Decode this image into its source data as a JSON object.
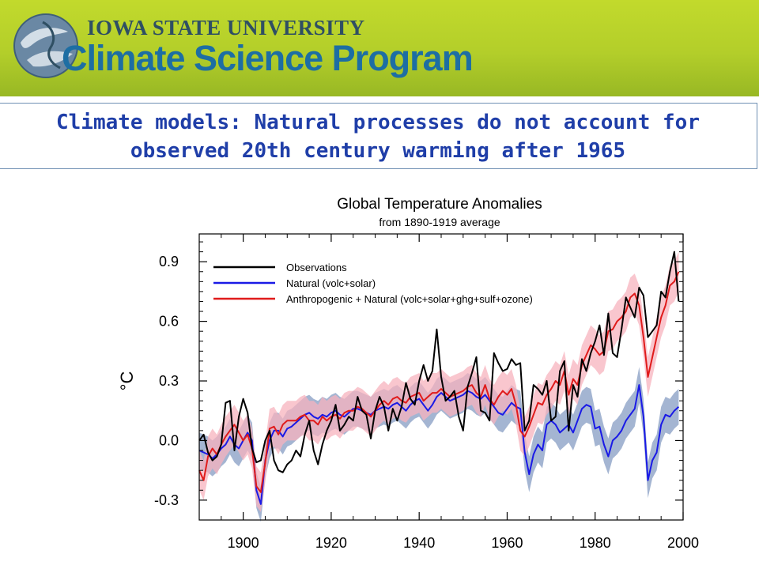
{
  "header": {
    "university": "IOWA STATE UNIVERSITY",
    "program": "Climate Science Program"
  },
  "slide": {
    "title_line1": "Climate models: Natural processes do not account for",
    "title_line2": "observed 20th century warming after 1965"
  },
  "colors": {
    "observations": "#000000",
    "natural": "#1a1ae6",
    "natural_band": "#9fb1d0",
    "anthro": "#e01b1b",
    "anthro_band": "#f7b3be",
    "title_text": "#1f3ea8"
  },
  "chart_data": {
    "type": "line",
    "title": "Global Temperature Anomalies",
    "subtitle": "from 1890-1919 average",
    "ylabel": "°C",
    "xlim": [
      1890,
      2000
    ],
    "ylim": [
      -0.4,
      1.04
    ],
    "xticks": [
      1900,
      1920,
      1940,
      1960,
      1980,
      2000
    ],
    "yticks": [
      -0.3,
      0.0,
      0.3,
      0.6,
      0.9
    ],
    "ytick_labels": [
      "-0.3",
      "0.0",
      "0.3",
      "0.6",
      "0.9"
    ],
    "legend_position": "top-left",
    "x": [
      1890,
      1891,
      1892,
      1893,
      1894,
      1895,
      1896,
      1897,
      1898,
      1899,
      1900,
      1901,
      1902,
      1903,
      1904,
      1905,
      1906,
      1907,
      1908,
      1909,
      1910,
      1911,
      1912,
      1913,
      1914,
      1915,
      1916,
      1917,
      1918,
      1919,
      1920,
      1921,
      1922,
      1923,
      1924,
      1925,
      1926,
      1927,
      1928,
      1929,
      1930,
      1931,
      1932,
      1933,
      1934,
      1935,
      1936,
      1937,
      1938,
      1939,
      1940,
      1941,
      1942,
      1943,
      1944,
      1945,
      1946,
      1947,
      1948,
      1949,
      1950,
      1951,
      1952,
      1953,
      1954,
      1955,
      1956,
      1957,
      1958,
      1959,
      1960,
      1961,
      1962,
      1963,
      1964,
      1965,
      1966,
      1967,
      1968,
      1969,
      1970,
      1971,
      1972,
      1973,
      1974,
      1975,
      1976,
      1977,
      1978,
      1979,
      1980,
      1981,
      1982,
      1983,
      1984,
      1985,
      1986,
      1987,
      1988,
      1989,
      1990,
      1991,
      1992,
      1993,
      1994,
      1995,
      1996,
      1997,
      1998,
      1999
    ],
    "series": [
      {
        "name": "Observations",
        "values": [
          0.0,
          0.03,
          -0.06,
          -0.1,
          -0.08,
          -0.02,
          0.19,
          0.2,
          -0.05,
          0.12,
          0.21,
          0.14,
          -0.04,
          -0.11,
          -0.1,
          0.0,
          0.05,
          -0.1,
          -0.15,
          -0.16,
          -0.12,
          -0.1,
          -0.05,
          -0.08,
          0.03,
          0.1,
          -0.05,
          -0.12,
          -0.02,
          0.05,
          0.1,
          0.18,
          0.05,
          0.08,
          0.12,
          0.1,
          0.22,
          0.15,
          0.13,
          0.01,
          0.15,
          0.22,
          0.17,
          0.05,
          0.16,
          0.1,
          0.17,
          0.29,
          0.21,
          0.18,
          0.3,
          0.38,
          0.3,
          0.35,
          0.56,
          0.32,
          0.2,
          0.22,
          0.25,
          0.12,
          0.05,
          0.27,
          0.34,
          0.42,
          0.15,
          0.14,
          0.1,
          0.44,
          0.39,
          0.35,
          0.36,
          0.41,
          0.38,
          0.39,
          0.05,
          0.1,
          0.28,
          0.26,
          0.23,
          0.3,
          0.1,
          0.12,
          0.35,
          0.4,
          0.05,
          0.28,
          0.22,
          0.41,
          0.35,
          0.44,
          0.5,
          0.58,
          0.43,
          0.64,
          0.44,
          0.42,
          0.56,
          0.72,
          0.67,
          0.62,
          0.77,
          0.73,
          0.52,
          0.55,
          0.58,
          0.75,
          0.72,
          0.85,
          0.95,
          0.7
        ],
        "color": "#000000"
      },
      {
        "name": "Natural (volc+solar)",
        "values": [
          -0.05,
          -0.06,
          -0.07,
          -0.09,
          -0.07,
          -0.04,
          -0.02,
          0.02,
          -0.02,
          -0.04,
          0.0,
          0.04,
          0.0,
          -0.25,
          -0.32,
          -0.1,
          0.0,
          0.05,
          0.05,
          0.02,
          0.06,
          0.07,
          0.09,
          0.11,
          0.13,
          0.14,
          0.12,
          0.11,
          0.13,
          0.12,
          0.14,
          0.15,
          0.13,
          0.12,
          0.14,
          0.16,
          0.16,
          0.15,
          0.14,
          0.13,
          0.15,
          0.16,
          0.17,
          0.16,
          0.18,
          0.19,
          0.17,
          0.15,
          0.18,
          0.2,
          0.21,
          0.18,
          0.15,
          0.18,
          0.22,
          0.24,
          0.22,
          0.2,
          0.21,
          0.22,
          0.23,
          0.25,
          0.24,
          0.22,
          0.21,
          0.23,
          0.2,
          0.17,
          0.14,
          0.13,
          0.16,
          0.19,
          0.17,
          0.16,
          -0.06,
          -0.17,
          -0.07,
          -0.02,
          -0.05,
          0.08,
          0.1,
          0.08,
          0.04,
          0.06,
          0.08,
          0.04,
          0.1,
          0.16,
          0.18,
          0.17,
          0.06,
          0.07,
          -0.02,
          -0.08,
          0.0,
          0.02,
          0.05,
          0.1,
          0.13,
          0.16,
          0.28,
          0.12,
          -0.2,
          -0.1,
          -0.06,
          0.08,
          0.13,
          0.12,
          0.15,
          0.17
        ],
        "color": "#1a1ae6"
      },
      {
        "name": "Anthropogenic + Natural (volc+solar+ghg+sulf+ozone)",
        "values": [
          -0.15,
          -0.2,
          -0.08,
          -0.04,
          -0.07,
          -0.02,
          0.02,
          0.05,
          0.08,
          0.04,
          0.0,
          0.03,
          -0.04,
          -0.23,
          -0.26,
          -0.11,
          0.06,
          0.07,
          0.03,
          0.08,
          0.1,
          0.1,
          0.1,
          0.12,
          0.13,
          0.1,
          0.1,
          0.08,
          0.12,
          0.1,
          0.12,
          0.13,
          0.11,
          0.14,
          0.15,
          0.15,
          0.17,
          0.16,
          0.14,
          0.12,
          0.15,
          0.18,
          0.2,
          0.18,
          0.21,
          0.22,
          0.2,
          0.19,
          0.22,
          0.23,
          0.24,
          0.2,
          0.22,
          0.24,
          0.24,
          0.26,
          0.24,
          0.22,
          0.23,
          0.24,
          0.25,
          0.27,
          0.28,
          0.24,
          0.22,
          0.28,
          0.21,
          0.18,
          0.22,
          0.25,
          0.23,
          0.26,
          0.18,
          0.05,
          0.02,
          0.07,
          0.13,
          0.19,
          0.18,
          0.23,
          0.26,
          0.3,
          0.28,
          0.35,
          0.23,
          0.31,
          0.28,
          0.38,
          0.43,
          0.48,
          0.46,
          0.43,
          0.45,
          0.55,
          0.56,
          0.6,
          0.62,
          0.65,
          0.72,
          0.74,
          0.68,
          0.52,
          0.32,
          0.42,
          0.52,
          0.62,
          0.68,
          0.78,
          0.8,
          0.85
        ],
        "color": "#e01b1b"
      }
    ]
  }
}
